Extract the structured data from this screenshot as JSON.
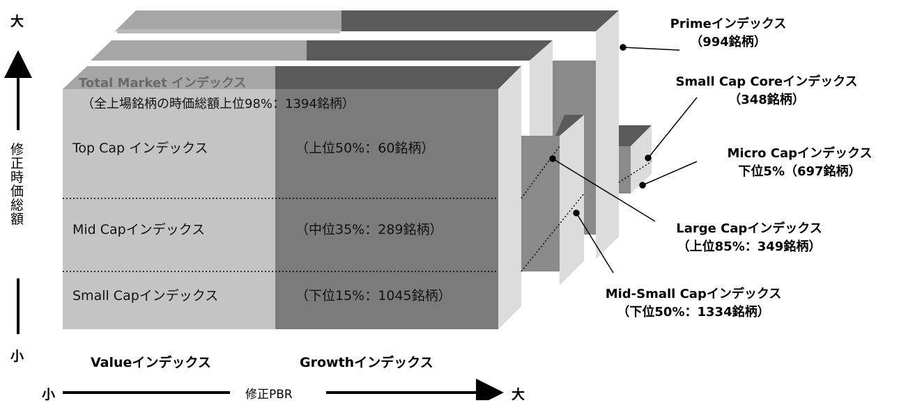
{
  "y_axis": {
    "label": "修正時価総額",
    "high": "大",
    "low": "小"
  },
  "x_axis": {
    "label": "修正PBR",
    "low": "小",
    "high": "大"
  },
  "columns": {
    "value": "Valueインデックス",
    "growth": "Growthインデックス"
  },
  "front_block": {
    "title": "Total Market インデックス",
    "subtitle": "（全上場銘柄の時価総額上位98%：1394銘柄）",
    "rows": [
      {
        "name": "Top Cap インデックス",
        "detail": "（上位50%：60銘柄）"
      },
      {
        "name": "Mid Capインデックス",
        "detail": "（中位35%：289銘柄）"
      },
      {
        "name": "Small Capインデックス",
        "detail": "（下位15%：1045銘柄）"
      }
    ]
  },
  "callouts": {
    "prime": {
      "name": "Primeインデックス",
      "detail": "（994銘柄）"
    },
    "small_cap_core": {
      "name": "Small Cap Coreインデックス",
      "detail": "（348銘柄）"
    },
    "micro_cap": {
      "name": "Micro Capインデックス",
      "detail": "下位5%（697銘柄）"
    },
    "large_cap": {
      "name": "Large Capインデックス",
      "detail": "（上位85%：349銘柄）"
    },
    "mid_small_cap": {
      "name": "Mid-Small Capインデックス",
      "detail": "（下位50%：1334銘柄）"
    }
  },
  "colors": {
    "value_face": "#c4c4c4",
    "growth_face": "#7b7b7b",
    "top_light": "#a6a6a6",
    "top_dark": "#5a5a5a",
    "side": "#dcdcdc",
    "back_dark": "#8a8a8a"
  }
}
